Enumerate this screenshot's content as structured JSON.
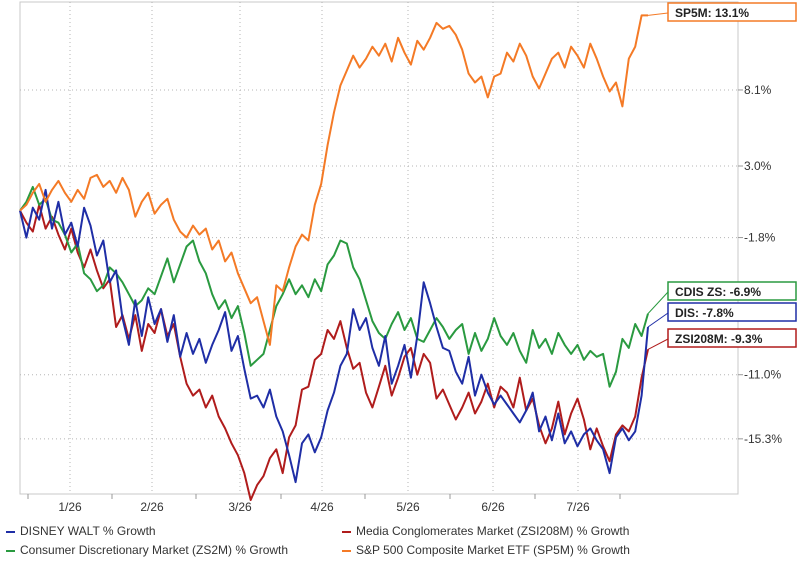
{
  "chart_data": {
    "type": "line",
    "x_tick_labels": [
      "1/26",
      "2/26",
      "3/26",
      "4/26",
      "5/26",
      "6/26",
      "7/26"
    ],
    "y_tick_labels": [
      "8.1%",
      "3.0%",
      "-1.8%",
      "-11.0%",
      "-15.3%"
    ],
    "ylim": [
      -19.0,
      14.0
    ],
    "grid": "dotted",
    "legend_position": "bottom",
    "series": [
      {
        "name": "DISNEY WALT % Growth",
        "end_label": "DIS: -7.8%",
        "color": "#1f2ea6",
        "values": [
          0.0,
          -1.8,
          0.2,
          -0.6,
          1.4,
          -1.2,
          0.6,
          -1.6,
          -0.8,
          -2.4,
          0.2,
          -1.0,
          -3.0,
          -2.0,
          -4.8,
          -4.0,
          -7.2,
          -9.0,
          -6.0,
          -8.4,
          -5.8,
          -7.6,
          -6.6,
          -8.8,
          -7.0,
          -9.8,
          -8.2,
          -9.6,
          -8.6,
          -10.2,
          -9.0,
          -8.0,
          -6.8,
          -9.4,
          -8.4,
          -10.6,
          -12.6,
          -12.4,
          -13.2,
          -12.0,
          -13.8,
          -14.8,
          -16.4,
          -18.2,
          -15.6,
          -15.0,
          -16.2,
          -15.2,
          -13.4,
          -12.2,
          -10.4,
          -9.6,
          -6.6,
          -8.0,
          -7.2,
          -9.2,
          -10.4,
          -8.4,
          -11.6,
          -10.4,
          -9.0,
          -11.2,
          -8.4,
          -4.8,
          -6.2,
          -7.8,
          -9.2,
          -9.4,
          -10.8,
          -11.6,
          -9.8,
          -12.4,
          -11.0,
          -12.2,
          -13.0,
          -12.4,
          -13.0,
          -13.6,
          -14.2,
          -13.4,
          -12.2,
          -14.8,
          -13.8,
          -15.4,
          -13.6,
          -15.6,
          -14.8,
          -15.8,
          -15.0,
          -14.6,
          -15.4,
          -16.0,
          -17.6,
          -15.2,
          -14.6,
          -15.4,
          -14.8,
          -12.4,
          -7.8
        ]
      },
      {
        "name": "Media Conglomerates Market (ZSI208M) % Growth",
        "end_label": "ZSI208M: -9.3%",
        "color": "#b01c1c",
        "values": [
          0.0,
          -0.8,
          -1.4,
          0.4,
          -1.2,
          -0.4,
          -1.6,
          -2.6,
          -1.2,
          -2.8,
          -3.8,
          -2.6,
          -4.0,
          -5.2,
          -4.6,
          -7.8,
          -7.0,
          -8.6,
          -7.0,
          -9.4,
          -7.6,
          -8.2,
          -6.6,
          -8.4,
          -7.6,
          -9.8,
          -11.6,
          -12.4,
          -12.0,
          -13.2,
          -12.4,
          -13.8,
          -14.6,
          -15.6,
          -16.4,
          -17.6,
          -19.4,
          -18.4,
          -17.8,
          -16.6,
          -16.0,
          -17.6,
          -15.2,
          -14.4,
          -12.0,
          -11.8,
          -10.0,
          -9.6,
          -8.0,
          -8.6,
          -7.4,
          -9.2,
          -10.6,
          -10.2,
          -12.2,
          -13.2,
          -11.8,
          -10.4,
          -12.4,
          -11.2,
          -9.8,
          -9.2,
          -11.0,
          -9.6,
          -10.2,
          -12.6,
          -12.0,
          -13.0,
          -14.0,
          -13.2,
          -12.2,
          -13.6,
          -12.8,
          -11.6,
          -13.2,
          -11.8,
          -12.2,
          -13.2,
          -11.2,
          -13.4,
          -12.6,
          -14.4,
          -15.6,
          -14.6,
          -12.8,
          -15.0,
          -13.6,
          -12.6,
          -14.0,
          -16.0,
          -14.6,
          -15.8,
          -16.8,
          -15.0,
          -14.4,
          -14.8,
          -13.8,
          -11.2,
          -9.3
        ]
      },
      {
        "name": "Consumer Discretionary Market (ZS2M) % Growth",
        "end_label": "CDIS ZS: -6.9%",
        "color": "#2a9a40",
        "values": [
          0.0,
          0.6,
          1.6,
          0.4,
          0.8,
          -0.6,
          -0.8,
          -1.6,
          -2.8,
          -2.2,
          -4.2,
          -4.6,
          -5.4,
          -5.0,
          -3.8,
          -4.2,
          -4.8,
          -5.6,
          -6.4,
          -6.0,
          -5.2,
          -5.6,
          -4.4,
          -3.2,
          -4.8,
          -3.6,
          -2.4,
          -2.0,
          -3.4,
          -4.2,
          -5.6,
          -6.6,
          -6.0,
          -7.2,
          -6.4,
          -8.2,
          -10.4,
          -10.0,
          -9.6,
          -8.0,
          -6.4,
          -5.6,
          -4.6,
          -5.6,
          -5.0,
          -5.8,
          -4.6,
          -5.4,
          -3.6,
          -3.0,
          -2.0,
          -2.2,
          -3.8,
          -4.6,
          -6.0,
          -7.4,
          -8.2,
          -8.6,
          -7.6,
          -6.8,
          -8.0,
          -7.2,
          -8.6,
          -8.8,
          -8.0,
          -7.2,
          -7.8,
          -8.6,
          -8.0,
          -7.6,
          -9.6,
          -8.2,
          -9.4,
          -8.6,
          -7.2,
          -8.4,
          -9.0,
          -8.2,
          -9.4,
          -10.2,
          -8.0,
          -9.2,
          -8.6,
          -9.6,
          -8.2,
          -9.0,
          -9.6,
          -9.0,
          -10.0,
          -9.4,
          -9.8,
          -9.6,
          -11.8,
          -10.8,
          -8.6,
          -9.2,
          -7.6,
          -8.4,
          -6.9
        ]
      },
      {
        "name": "S&P 500 Composite Market ETF (SP5M) % Growth",
        "end_label": "SP5M: 13.1%",
        "color": "#f47a26",
        "values": [
          0.0,
          0.4,
          1.2,
          1.8,
          0.6,
          1.4,
          2.0,
          1.2,
          0.6,
          1.4,
          0.8,
          2.2,
          2.4,
          1.6,
          2.0,
          1.2,
          2.2,
          1.4,
          -0.4,
          0.6,
          1.2,
          -0.2,
          0.4,
          0.8,
          -0.6,
          -1.4,
          -1.8,
          -1.0,
          -1.6,
          -1.2,
          -2.6,
          -2.0,
          -3.4,
          -2.8,
          -4.2,
          -5.2,
          -6.2,
          -5.8,
          -7.4,
          -9.0,
          -5.0,
          -5.4,
          -3.8,
          -2.4,
          -1.6,
          -2.0,
          0.4,
          1.8,
          4.4,
          6.6,
          8.4,
          9.4,
          10.4,
          9.6,
          10.2,
          11.0,
          10.4,
          11.2,
          10.0,
          11.6,
          10.6,
          9.8,
          11.4,
          10.8,
          11.6,
          12.6,
          12.2,
          12.4,
          11.8,
          10.8,
          9.2,
          8.6,
          9.0,
          7.6,
          9.0,
          9.2,
          10.6,
          10.0,
          11.2,
          10.4,
          9.0,
          8.2,
          9.2,
          10.2,
          10.6,
          9.6,
          11.0,
          10.4,
          9.6,
          11.2,
          10.2,
          9.0,
          8.0,
          8.6,
          7.0,
          10.2,
          11.0,
          13.1,
          13.1
        ]
      }
    ]
  }
}
